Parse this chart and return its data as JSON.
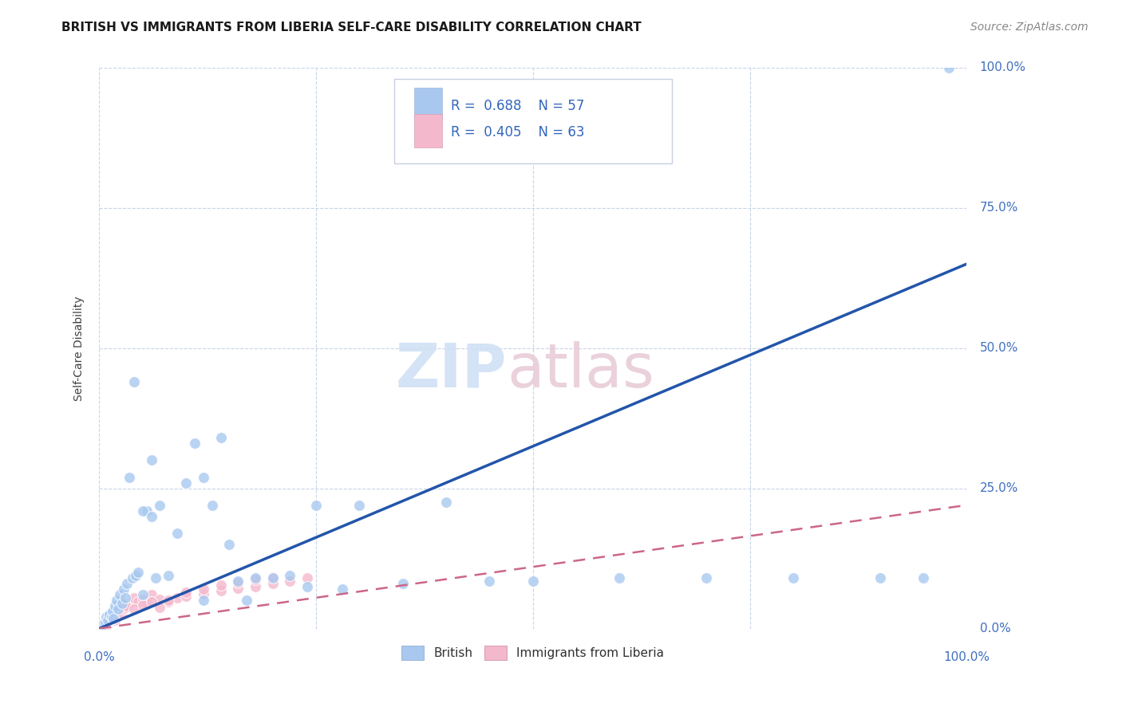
{
  "title": "BRITISH VS IMMIGRANTS FROM LIBERIA SELF-CARE DISABILITY CORRELATION CHART",
  "source": "Source: ZipAtlas.com",
  "ylabel": "Self-Care Disability",
  "blue_color": "#a8c8f0",
  "pink_color": "#f4b8cc",
  "blue_line_color": "#2255aa",
  "pink_line_color": "#cc6688",
  "grid_color": "#c8d4e8",
  "watermark_zip_color": "#d0e0f4",
  "watermark_atlas_color": "#e8ccd8",
  "british_x": [
    0.3,
    0.5,
    0.7,
    0.8,
    1.0,
    1.2,
    1.4,
    1.5,
    1.6,
    1.8,
    2.0,
    2.2,
    2.4,
    2.6,
    2.8,
    3.0,
    3.2,
    3.5,
    3.8,
    4.0,
    4.2,
    4.5,
    5.0,
    5.5,
    6.0,
    6.5,
    7.0,
    8.0,
    9.0,
    10.0,
    11.0,
    12.0,
    13.0,
    14.0,
    15.0,
    16.0,
    17.0,
    18.0,
    20.0,
    22.0,
    24.0,
    25.0,
    28.0,
    30.0,
    35.0,
    40.0,
    45.0,
    50.0,
    60.0,
    70.0,
    80.0,
    90.0,
    95.0,
    98.0,
    5.0,
    6.0,
    12.0
  ],
  "british_y": [
    0.5,
    1.0,
    1.2,
    2.0,
    1.5,
    2.5,
    2.0,
    3.0,
    1.8,
    4.0,
    5.0,
    3.5,
    6.0,
    4.5,
    7.0,
    5.5,
    8.0,
    27.0,
    9.0,
    44.0,
    9.5,
    10.0,
    6.0,
    21.0,
    30.0,
    9.0,
    22.0,
    9.5,
    17.0,
    26.0,
    33.0,
    27.0,
    22.0,
    34.0,
    15.0,
    8.5,
    5.0,
    9.0,
    9.0,
    9.5,
    7.5,
    22.0,
    7.0,
    22.0,
    8.0,
    22.5,
    8.5,
    8.5,
    9.0,
    9.0,
    9.0,
    9.0,
    9.0,
    100.0,
    21.0,
    20.0,
    5.0
  ],
  "liberia_x": [
    0.1,
    0.15,
    0.2,
    0.25,
    0.3,
    0.35,
    0.4,
    0.45,
    0.5,
    0.55,
    0.6,
    0.65,
    0.7,
    0.75,
    0.8,
    0.85,
    0.9,
    0.95,
    1.0,
    1.1,
    1.2,
    1.3,
    1.4,
    1.5,
    1.6,
    1.7,
    1.8,
    1.9,
    2.0,
    2.2,
    2.4,
    2.6,
    2.8,
    3.0,
    3.5,
    4.0,
    4.5,
    5.0,
    5.5,
    6.0,
    7.0,
    8.0,
    9.0,
    10.0,
    12.0,
    14.0,
    16.0,
    18.0,
    20.0,
    22.0,
    24.0,
    3.0,
    4.0,
    5.0,
    6.0,
    7.0,
    8.0,
    10.0,
    12.0,
    14.0,
    16.0,
    18.0,
    20.0
  ],
  "liberia_y": [
    0.3,
    0.5,
    0.4,
    0.6,
    0.8,
    0.5,
    0.7,
    0.9,
    1.0,
    0.6,
    1.2,
    0.7,
    1.4,
    0.9,
    1.5,
    1.0,
    1.6,
    0.8,
    1.8,
    1.2,
    2.0,
    1.5,
    2.2,
    2.5,
    1.8,
    2.0,
    1.5,
    2.8,
    3.0,
    2.5,
    3.2,
    2.8,
    3.5,
    3.8,
    4.5,
    5.5,
    4.8,
    5.2,
    4.5,
    6.0,
    5.2,
    4.8,
    5.5,
    5.8,
    6.2,
    6.8,
    7.2,
    7.5,
    8.0,
    8.5,
    9.0,
    4.0,
    3.5,
    4.2,
    4.8,
    3.8,
    5.0,
    6.5,
    7.0,
    7.8,
    8.2,
    8.8,
    9.2
  ],
  "british_line_x": [
    0,
    100
  ],
  "british_line_y": [
    0,
    65
  ],
  "liberia_line_x": [
    0,
    100
  ],
  "liberia_line_y": [
    0,
    22
  ],
  "xlim": [
    0,
    100
  ],
  "ylim": [
    0,
    100
  ],
  "xtick_pos": [
    0,
    25,
    50,
    75,
    100
  ],
  "ytick_pos": [
    0,
    25,
    50,
    75,
    100
  ],
  "tick_labels": [
    "0.0%",
    "25.0%",
    "50.0%",
    "75.0%",
    "100.0%"
  ]
}
